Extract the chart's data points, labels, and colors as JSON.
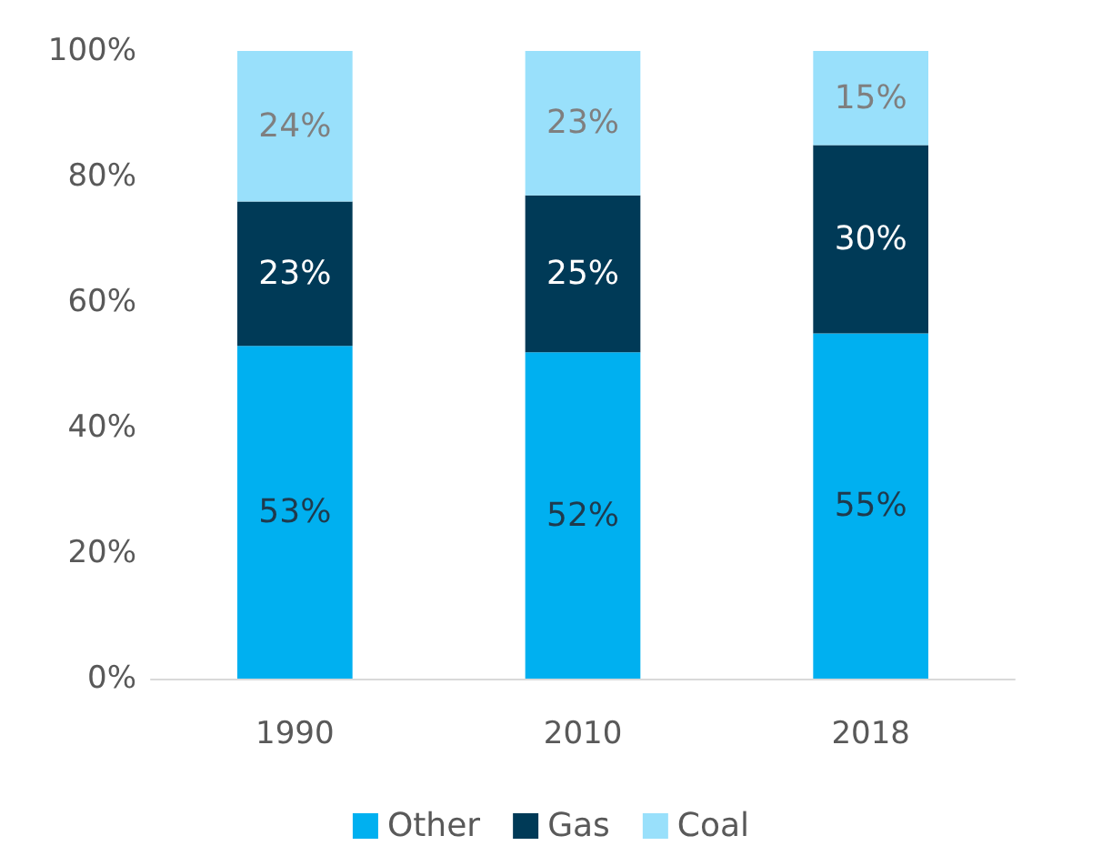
{
  "chart_data": {
    "type": "bar",
    "stacked": true,
    "categories": [
      "1990",
      "2010",
      "2018"
    ],
    "series": [
      {
        "name": "Other",
        "color": "#00b0f0",
        "values": [
          53,
          52,
          55
        ],
        "value_labels": [
          "53%",
          "52%",
          "55%"
        ]
      },
      {
        "name": "Gas",
        "color": "#003a57",
        "values": [
          23,
          25,
          30
        ],
        "value_labels": [
          "23%",
          "25%",
          "30%"
        ]
      },
      {
        "name": "Coal",
        "color": "#99e0fb",
        "values": [
          24,
          23,
          15
        ],
        "value_labels": [
          "24%",
          "23%",
          "15%"
        ]
      }
    ],
    "ylim": [
      0,
      100
    ],
    "yticks": [
      {
        "value": 0,
        "label": "0%"
      },
      {
        "value": 20,
        "label": "20%"
      },
      {
        "value": 40,
        "label": "40%"
      },
      {
        "value": 60,
        "label": "60%"
      },
      {
        "value": 80,
        "label": "80%"
      },
      {
        "value": 100,
        "label": "100%"
      }
    ],
    "grid": false,
    "legend": "bottom"
  }
}
